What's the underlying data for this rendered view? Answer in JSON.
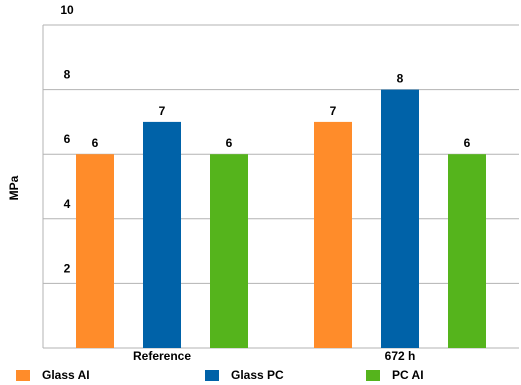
{
  "chart_data": {
    "type": "bar",
    "title": "",
    "xlabel": "",
    "ylabel": "MPa",
    "ylim": [
      0,
      10
    ],
    "yticks": [
      2,
      4,
      6,
      8,
      10
    ],
    "grid": true,
    "legend_position": "bottom",
    "categories": [
      "Reference",
      "672 h"
    ],
    "series": [
      {
        "name": "Glass AI",
        "color": "#ff8c2a",
        "values": [
          6,
          7
        ]
      },
      {
        "name": "Glass PC",
        "color": "#0062a8",
        "values": [
          7,
          8
        ]
      },
      {
        "name": "PC AI",
        "color": "#55b41c",
        "values": [
          6,
          6
        ]
      }
    ]
  }
}
